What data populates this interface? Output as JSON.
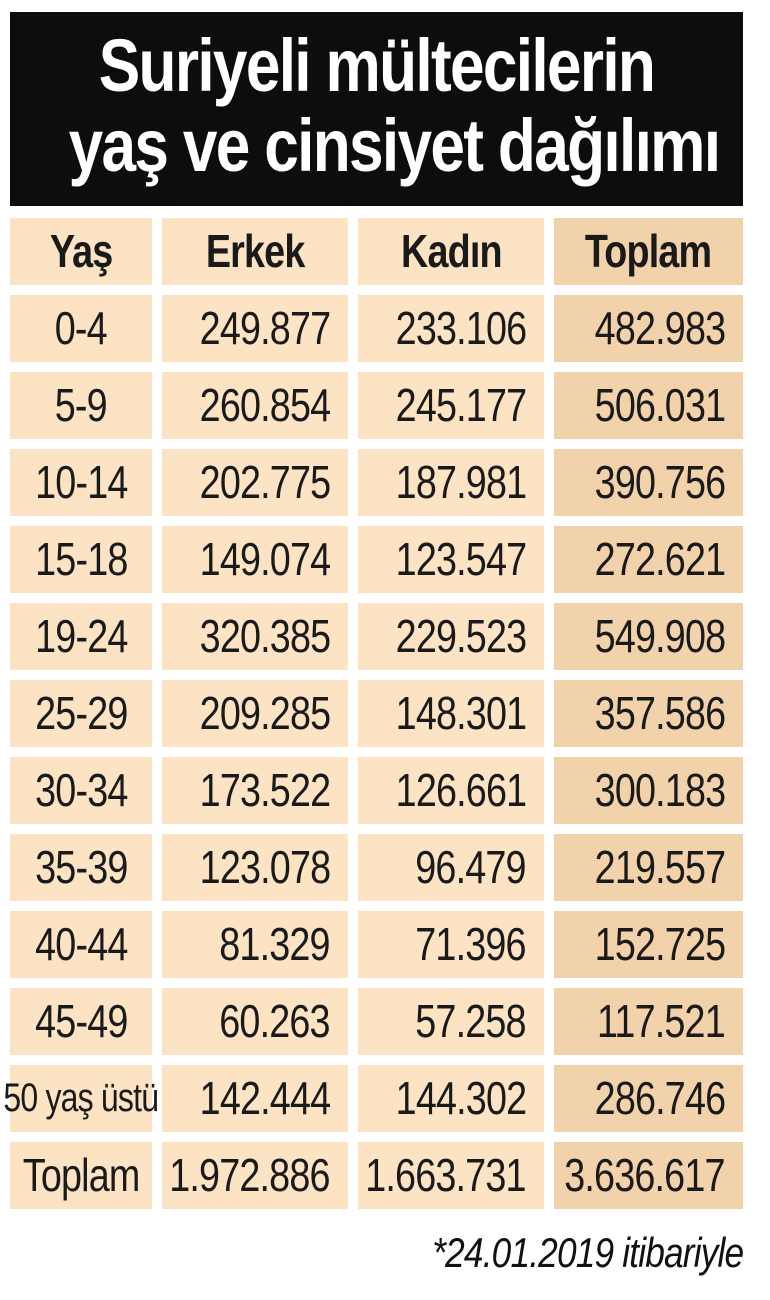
{
  "header": {
    "title_line1": "Suriyeli mültecilerin",
    "title_line2": "yaş ve cinsiyet dağılımı"
  },
  "footnote": "*24.01.2019 itibariyle",
  "colors": {
    "title_bg": "#0d0d0d",
    "title_text": "#ffffff",
    "cell_bg": "#fbe3c3",
    "total_column_bg": "#f2d2aa",
    "text": "#1a1a1a"
  },
  "chart_data": {
    "type": "table",
    "title": "Suriyeli mültecilerin yaş ve cinsiyet dağılımı",
    "note": "*24.01.2019 itibariyle",
    "columns": [
      "Yaş",
      "Erkek",
      "Kadın",
      "Toplam"
    ],
    "rows": [
      [
        "0-4",
        "249.877",
        "233.106",
        "482.983"
      ],
      [
        "5-9",
        "260.854",
        "245.177",
        "506.031"
      ],
      [
        "10-14",
        "202.775",
        "187.981",
        "390.756"
      ],
      [
        "15-18",
        "149.074",
        "123.547",
        "272.621"
      ],
      [
        "19-24",
        "320.385",
        "229.523",
        "549.908"
      ],
      [
        "25-29",
        "209.285",
        "148.301",
        "357.586"
      ],
      [
        "30-34",
        "173.522",
        "126.661",
        "300.183"
      ],
      [
        "35-39",
        "123.078",
        "96.479",
        "219.557"
      ],
      [
        "40-44",
        "81.329",
        "71.396",
        "152.725"
      ],
      [
        "45-49",
        "60.263",
        "57.258",
        "117.521"
      ],
      [
        "50 yaş üstü",
        "142.444",
        "144.302",
        "286.746"
      ],
      [
        "Toplam",
        "1.972.886",
        "1.663.731",
        "3.636.617"
      ]
    ]
  }
}
